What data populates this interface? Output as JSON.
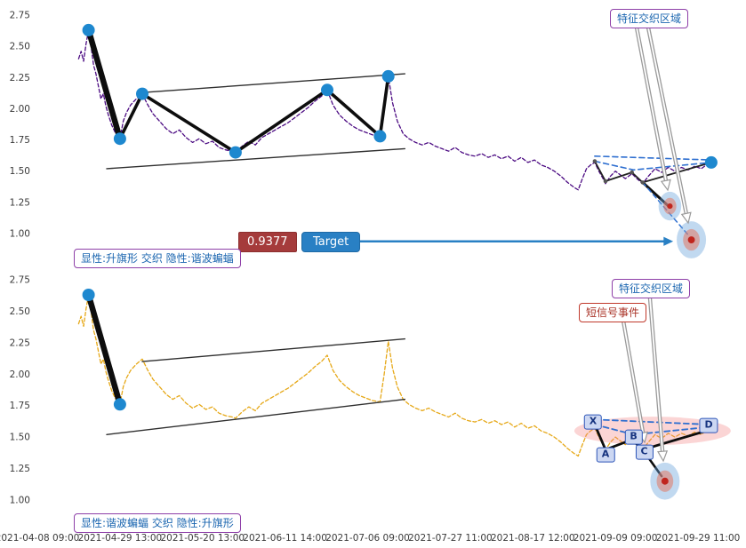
{
  "axes": {
    "y_ticks": [
      "2.75",
      "2.50",
      "2.25",
      "2.00",
      "1.75",
      "1.50",
      "1.25",
      "1.00"
    ],
    "x_ticks": [
      "2021-04-08 09:00",
      "2021-04-29 13:00",
      "2021-05-20 13:00",
      "2021-06-11 14:00",
      "2021-07-06 09:00",
      "2021-07-27 11:00",
      "2021-08-17 12:00",
      "2021-09-09 09:00",
      "2021-09-29 11:00"
    ]
  },
  "top_panel": {
    "region_label": "特征交织区域",
    "target_value": "0.9377",
    "target_label": "Target",
    "caption": "显性:升旗形 交织 隐性:谐波蝙蝠"
  },
  "bottom_panel": {
    "region_label": "特征交织区域",
    "signal_label": "短信号事件",
    "caption": "显性:谐波蝙蝠 交织 隐性:升旗形",
    "xabcd": [
      {
        "label": "X",
        "t": 6.73,
        "v": 1.62
      },
      {
        "label": "A",
        "t": 6.88,
        "v": 1.36
      },
      {
        "label": "B",
        "t": 7.22,
        "v": 1.5
      },
      {
        "label": "C",
        "t": 7.35,
        "v": 1.38
      },
      {
        "label": "D",
        "t": 8.13,
        "v": 1.59
      }
    ]
  },
  "chart_data": {
    "type": "line",
    "x_unit": "tick-index (see x_ticks labels)",
    "x_ticks": [
      "2021-04-08 09:00",
      "2021-04-29 13:00",
      "2021-05-20 13:00",
      "2021-06-11 14:00",
      "2021-07-06 09:00",
      "2021-07-27 11:00",
      "2021-08-17 12:00",
      "2021-09-09 09:00",
      "2021-09-29 11:00"
    ],
    "y_ticks": [
      "2.75",
      "2.50",
      "2.25",
      "2.00",
      "1.75",
      "1.50",
      "1.25",
      "1.00"
    ],
    "ylim": [
      0.78,
      2.85
    ],
    "grid": false,
    "colors": {
      "marker": "#1e88cf",
      "target_arrow": "#2980c4"
    },
    "price_series": [
      [
        0.5,
        2.4
      ],
      [
        0.53,
        2.46
      ],
      [
        0.56,
        2.38
      ],
      [
        0.59,
        2.52
      ],
      [
        0.62,
        2.63
      ],
      [
        0.65,
        2.5
      ],
      [
        0.68,
        2.35
      ],
      [
        0.71,
        2.28
      ],
      [
        0.74,
        2.18
      ],
      [
        0.77,
        2.08
      ],
      [
        0.8,
        2.12
      ],
      [
        0.83,
        2.02
      ],
      [
        0.86,
        1.95
      ],
      [
        0.9,
        1.87
      ],
      [
        0.95,
        1.8
      ],
      [
        1.0,
        1.76
      ],
      [
        1.04,
        1.9
      ],
      [
        1.08,
        1.97
      ],
      [
        1.13,
        2.03
      ],
      [
        1.2,
        2.08
      ],
      [
        1.27,
        2.12
      ],
      [
        1.33,
        2.04
      ],
      [
        1.4,
        1.96
      ],
      [
        1.48,
        1.9
      ],
      [
        1.56,
        1.84
      ],
      [
        1.64,
        1.8
      ],
      [
        1.72,
        1.83
      ],
      [
        1.8,
        1.77
      ],
      [
        1.88,
        1.73
      ],
      [
        1.96,
        1.76
      ],
      [
        2.04,
        1.72
      ],
      [
        2.12,
        1.74
      ],
      [
        2.2,
        1.69
      ],
      [
        2.28,
        1.67
      ],
      [
        2.36,
        1.66
      ],
      [
        2.4,
        1.65
      ],
      [
        2.48,
        1.7
      ],
      [
        2.56,
        1.74
      ],
      [
        2.64,
        1.71
      ],
      [
        2.72,
        1.77
      ],
      [
        2.8,
        1.8
      ],
      [
        2.88,
        1.83
      ],
      [
        2.96,
        1.86
      ],
      [
        3.04,
        1.89
      ],
      [
        3.12,
        1.93
      ],
      [
        3.2,
        1.97
      ],
      [
        3.28,
        2.01
      ],
      [
        3.36,
        2.06
      ],
      [
        3.44,
        2.1
      ],
      [
        3.51,
        2.15
      ],
      [
        3.58,
        2.03
      ],
      [
        3.66,
        1.95
      ],
      [
        3.74,
        1.9
      ],
      [
        3.82,
        1.86
      ],
      [
        3.9,
        1.83
      ],
      [
        3.98,
        1.81
      ],
      [
        4.06,
        1.79
      ],
      [
        4.15,
        1.78
      ],
      [
        4.2,
        2.0
      ],
      [
        4.25,
        2.26
      ],
      [
        4.3,
        2.05
      ],
      [
        4.36,
        1.9
      ],
      [
        4.43,
        1.8
      ],
      [
        4.5,
        1.76
      ],
      [
        4.58,
        1.73
      ],
      [
        4.66,
        1.71
      ],
      [
        4.74,
        1.73
      ],
      [
        4.82,
        1.7
      ],
      [
        4.9,
        1.68
      ],
      [
        4.98,
        1.66
      ],
      [
        5.06,
        1.69
      ],
      [
        5.14,
        1.65
      ],
      [
        5.22,
        1.63
      ],
      [
        5.3,
        1.62
      ],
      [
        5.38,
        1.64
      ],
      [
        5.46,
        1.61
      ],
      [
        5.54,
        1.63
      ],
      [
        5.62,
        1.6
      ],
      [
        5.7,
        1.62
      ],
      [
        5.78,
        1.58
      ],
      [
        5.86,
        1.61
      ],
      [
        5.94,
        1.57
      ],
      [
        6.02,
        1.59
      ],
      [
        6.1,
        1.55
      ],
      [
        6.18,
        1.53
      ],
      [
        6.26,
        1.5
      ],
      [
        6.34,
        1.46
      ],
      [
        6.42,
        1.41
      ],
      [
        6.5,
        1.37
      ],
      [
        6.55,
        1.35
      ],
      [
        6.6,
        1.44
      ],
      [
        6.65,
        1.52
      ],
      [
        6.7,
        1.55
      ],
      [
        6.75,
        1.57
      ],
      [
        6.8,
        1.5
      ],
      [
        6.85,
        1.44
      ],
      [
        6.88,
        1.4
      ],
      [
        6.94,
        1.46
      ],
      [
        7.0,
        1.5
      ],
      [
        7.06,
        1.47
      ],
      [
        7.12,
        1.44
      ],
      [
        7.2,
        1.48
      ],
      [
        7.26,
        1.44
      ],
      [
        7.33,
        1.4
      ],
      [
        7.4,
        1.46
      ],
      [
        7.48,
        1.52
      ],
      [
        7.56,
        1.49
      ],
      [
        7.64,
        1.53
      ],
      [
        7.72,
        1.5
      ],
      [
        7.8,
        1.53
      ],
      [
        7.88,
        1.51
      ],
      [
        7.96,
        1.54
      ],
      [
        8.04,
        1.52
      ],
      [
        8.1,
        1.55
      ],
      [
        8.16,
        1.57
      ]
    ],
    "panels": [
      {
        "id": "top",
        "explicit_pattern_name": "升旗形",
        "implicit_pattern_name": "谐波蝙蝠",
        "price_color": "#4b0a82",
        "lines": [
          {
            "name": "channel-lower",
            "points": [
              [
                0.84,
                1.52
              ],
              [
                4.45,
                1.68
              ]
            ],
            "color": "#2f2f2f",
            "width": 1.4
          },
          {
            "name": "channel-upper",
            "points": [
              [
                1.27,
                2.13
              ],
              [
                4.45,
                2.28
              ]
            ],
            "color": "#2f2f2f",
            "width": 1.4
          },
          {
            "name": "flag-zigzag",
            "points": [
              [
                0.62,
                2.63
              ],
              [
                1.0,
                1.76
              ],
              [
                1.27,
                2.12
              ],
              [
                2.4,
                1.65
              ],
              [
                3.51,
                2.15
              ],
              [
                4.15,
                1.78
              ],
              [
                4.25,
                2.26
              ]
            ],
            "color": "#0d0d0d",
            "width": 3.6
          },
          {
            "name": "flag-pole",
            "points": [
              [
                0.62,
                2.63
              ],
              [
                1.0,
                1.76
              ]
            ],
            "color": "#0d0d0d",
            "width": 6.5
          },
          {
            "name": "hidden-bat-zigzag",
            "points": [
              [
                6.75,
                1.58
              ],
              [
                6.88,
                1.42
              ],
              [
                7.2,
                1.49
              ],
              [
                7.33,
                1.41
              ],
              [
                8.16,
                1.57
              ]
            ],
            "color": "#222222",
            "width": 1.8
          },
          {
            "name": "hidden-bat-dash-mid",
            "points": [
              [
                6.75,
                1.58
              ],
              [
                7.22,
                1.51
              ],
              [
                8.16,
                1.57
              ]
            ],
            "color": "#2e6fd0",
            "width": 1.6,
            "dash": "6 4"
          },
          {
            "name": "hidden-bat-dash-top",
            "points": [
              [
                6.75,
                1.62
              ],
              [
                8.16,
                1.59
              ]
            ],
            "color": "#2e6fd0",
            "width": 1.6,
            "dash": "6 4"
          },
          {
            "name": "tail-black",
            "points": [
              [
                7.33,
                1.41
              ],
              [
                7.66,
                1.21
              ]
            ],
            "color": "#111111",
            "width": 3
          },
          {
            "name": "tail-dash",
            "points": [
              [
                7.33,
                1.41
              ],
              [
                7.88,
                0.99
              ]
            ],
            "color": "#2e6fd0",
            "width": 1.5,
            "dash": "5 4"
          }
        ],
        "small_dots": [
          [
            6.75,
            1.58
          ],
          [
            6.88,
            1.42
          ],
          [
            7.2,
            1.49
          ],
          [
            7.33,
            1.41
          ]
        ],
        "markers": [
          [
            0.62,
            2.63
          ],
          [
            1.0,
            1.76
          ],
          [
            1.27,
            2.12
          ],
          [
            2.4,
            1.65
          ],
          [
            3.51,
            2.15
          ],
          [
            4.15,
            1.78
          ],
          [
            4.25,
            2.26
          ],
          [
            8.16,
            1.57
          ]
        ],
        "targets": [
          {
            "t": 7.66,
            "v": 1.22,
            "scale": 0.85
          },
          {
            "t": 7.92,
            "v": 0.95,
            "scale": 1.1
          }
        ],
        "target_line": {
          "value": 0.9377,
          "from_t": 3.9,
          "to_t": 7.7
        }
      },
      {
        "id": "bottom",
        "explicit_pattern_name": "谐波蝙蝠",
        "implicit_pattern_name": "升旗形",
        "price_color": "#e6a817",
        "lines": [
          {
            "name": "channel-lower",
            "points": [
              [
                0.84,
                1.52
              ],
              [
                4.45,
                1.8
              ]
            ],
            "color": "#2f2f2f",
            "width": 1.4
          },
          {
            "name": "channel-upper",
            "points": [
              [
                1.27,
                2.1
              ],
              [
                4.45,
                2.28
              ]
            ],
            "color": "#2f2f2f",
            "width": 1.4
          },
          {
            "name": "flag-pole",
            "points": [
              [
                0.62,
                2.63
              ],
              [
                1.0,
                1.76
              ]
            ],
            "color": "#0d0d0d",
            "width": 6.5
          },
          {
            "name": "bat-zigzag",
            "points": [
              [
                6.75,
                1.6
              ],
              [
                6.88,
                1.4
              ],
              [
                7.2,
                1.48
              ],
              [
                7.33,
                1.4
              ],
              [
                8.1,
                1.55
              ]
            ],
            "color": "#0d0d0d",
            "width": 2.8
          },
          {
            "name": "bat-branch",
            "points": [
              [
                7.33,
                1.4
              ],
              [
                7.56,
                1.19
              ]
            ],
            "color": "#0d0d0d",
            "width": 2.6
          },
          {
            "name": "bat-dash-mid",
            "points": [
              [
                6.75,
                1.6
              ],
              [
                7.22,
                1.52
              ],
              [
                8.13,
                1.58
              ]
            ],
            "color": "#2e6fd0",
            "width": 1.8,
            "dash": "6 4"
          },
          {
            "name": "bat-dash-top",
            "points": [
              [
                6.75,
                1.64
              ],
              [
                8.13,
                1.6
              ]
            ],
            "color": "#2e6fd0",
            "width": 1.8,
            "dash": "6 4"
          }
        ],
        "highlight_ellipse": {
          "t": 7.45,
          "v": 1.55,
          "rx": 88,
          "ry": 16,
          "color": "rgba(242,128,128,0.33)"
        },
        "markers": [
          [
            0.62,
            2.63
          ],
          [
            1.0,
            1.76
          ]
        ],
        "targets": [
          {
            "t": 7.6,
            "v": 1.15,
            "scale": 1.1
          }
        ]
      }
    ]
  }
}
